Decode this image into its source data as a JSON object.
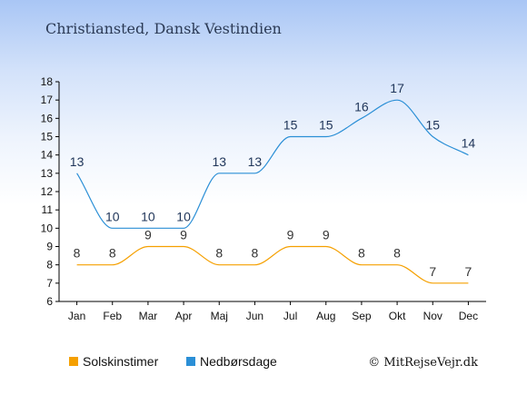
{
  "chart_data": {
    "type": "line",
    "title": "Christiansted, Dansk Vestindien",
    "categories": [
      "Jan",
      "Feb",
      "Mar",
      "Apr",
      "Maj",
      "Jun",
      "Jul",
      "Aug",
      "Sep",
      "Okt",
      "Nov",
      "Dec"
    ],
    "series": [
      {
        "name": "Solskinstimer",
        "color": "#f5a000",
        "label_color": "#333333",
        "values": [
          8,
          8,
          9,
          9,
          8,
          8,
          9,
          9,
          8,
          8,
          7,
          7
        ]
      },
      {
        "name": "Nedbørsdage",
        "color": "#2b8fd6",
        "label_color": "#1f3559",
        "values": [
          13,
          10,
          10,
          10,
          13,
          13,
          15,
          15,
          16,
          17,
          15,
          14
        ]
      }
    ],
    "y_ticks": [
      "6",
      "7",
      "8",
      "9",
      "10",
      "11",
      "12",
      "13",
      "14",
      "15",
      "16",
      "17",
      "18"
    ],
    "ylim": [
      6,
      18
    ],
    "grid": false,
    "legend_placement": "bottom-left",
    "credit": "© MitRejseVejr.dk"
  }
}
